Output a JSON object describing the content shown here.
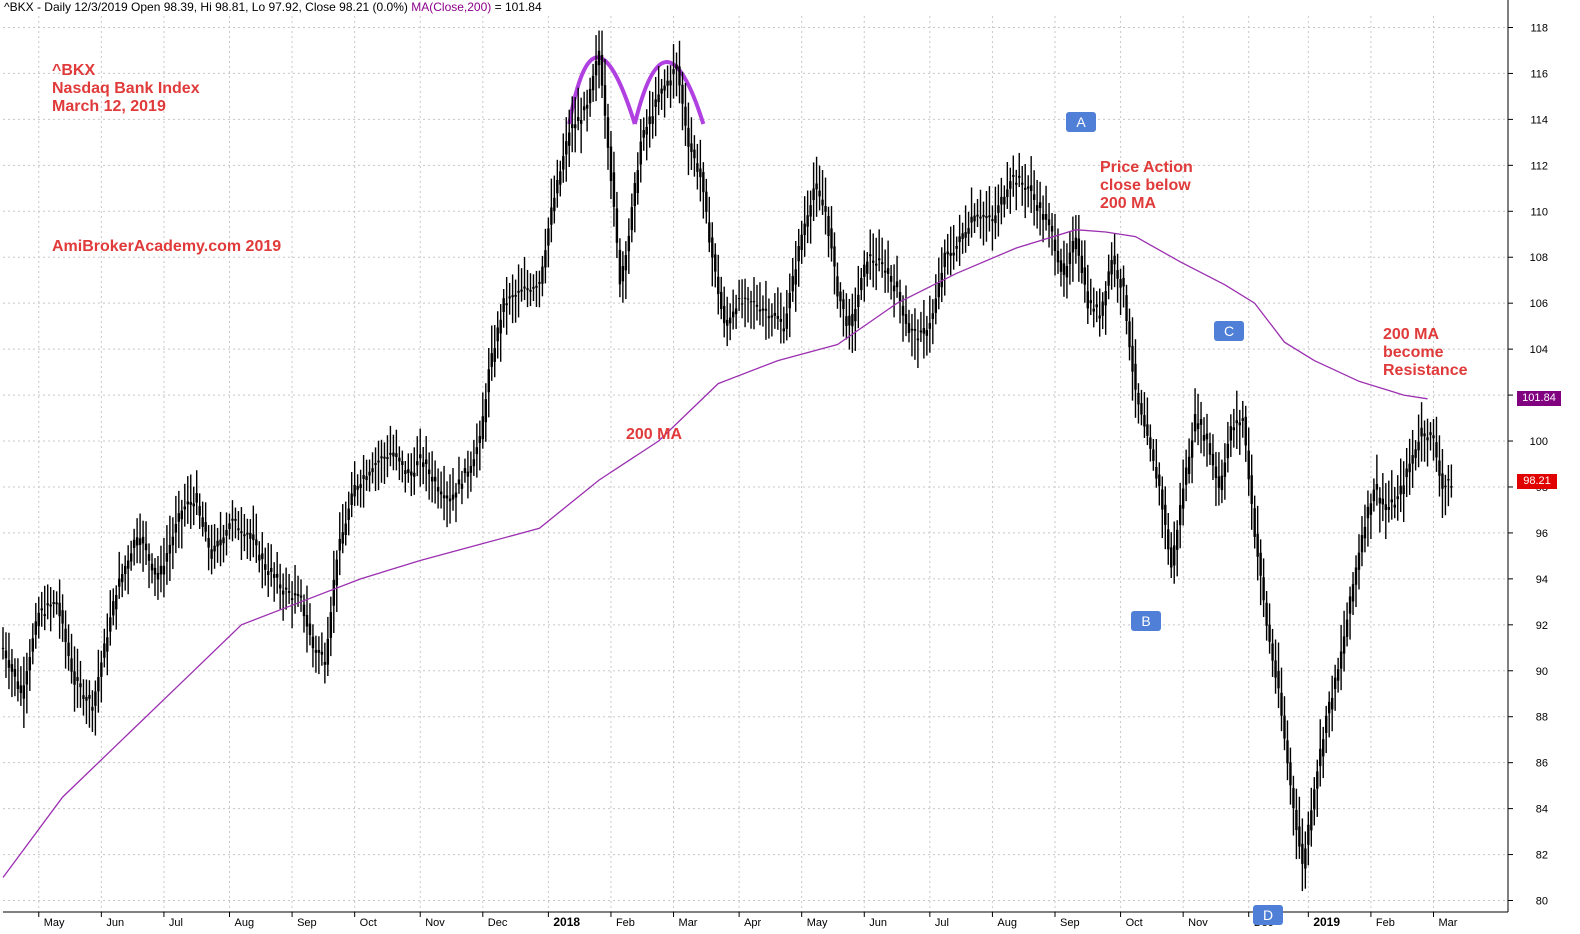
{
  "header": {
    "symbol_text": "^BKX - Daily 12/3/2019 Open 98.39, Hi 98.81, Lo 97.92, Close 98.21 (0.0%)",
    "ma_label": "MA(Close,200)",
    "ma_value_text": " = 101.84"
  },
  "annotations": {
    "title": "^BKX\nNasdaq Bank Index\nMarch 12, 2019",
    "site": "AmiBrokerAcademy.com  2019",
    "ma_label": "200 MA",
    "price_action": "Price Action\nclose below\n200 MA",
    "resistance": "200 MA\nbecome\nResistance"
  },
  "markers": [
    "A",
    "B",
    "C",
    "D"
  ],
  "tags": {
    "ma_tag": "101.84",
    "close_tag": "98.21",
    "ma_color": "#800080",
    "close_color": "#e00000"
  },
  "colors": {
    "price": "#000000",
    "ma": "#9b2fb0",
    "arc": "#b040e0",
    "grid": "#c8c8c8"
  },
  "chart_data": {
    "type": "line",
    "title": "",
    "xlabel": "",
    "ylabel": "",
    "ylim": [
      79.5,
      118.5
    ],
    "y_ticks": [
      80,
      82,
      84,
      86,
      88,
      90,
      92,
      94,
      96,
      98,
      100,
      102,
      104,
      106,
      108,
      110,
      112,
      114,
      116,
      118
    ],
    "x_ticks": [
      "May",
      "Jun",
      "Jul",
      "Aug",
      "Sep",
      "Oct",
      "Nov",
      "Dec",
      "2018",
      "Feb",
      "Mar",
      "Apr",
      "May",
      "Jun",
      "Jul",
      "Aug",
      "Sep",
      "Oct",
      "Nov",
      "Dec",
      "2019",
      "Feb",
      "Mar"
    ],
    "x_tick_index": [
      12,
      33,
      54,
      76,
      97,
      118,
      140,
      161,
      183,
      204,
      225,
      247,
      268,
      289,
      311,
      332,
      353,
      375,
      396,
      418,
      438,
      459,
      480
    ],
    "series": [
      {
        "name": "",
        "style": "price",
        "points": [
          [
            0,
            91
          ],
          [
            6,
            89
          ],
          [
            12,
            92.5
          ],
          [
            18,
            93
          ],
          [
            24,
            89.5
          ],
          [
            30,
            88.5
          ],
          [
            38,
            93.5
          ],
          [
            45,
            96
          ],
          [
            52,
            94
          ],
          [
            60,
            97
          ],
          [
            64,
            97.5
          ],
          [
            70,
            95
          ],
          [
            76,
            96.5
          ],
          [
            82,
            96
          ],
          [
            88,
            94.5
          ],
          [
            94,
            93.5
          ],
          [
            100,
            93
          ],
          [
            104,
            91
          ],
          [
            108,
            90.5
          ],
          [
            112,
            95
          ],
          [
            118,
            98
          ],
          [
            124,
            99
          ],
          [
            130,
            99.5
          ],
          [
            136,
            98.5
          ],
          [
            140,
            99.2
          ],
          [
            146,
            98
          ],
          [
            150,
            97.5
          ],
          [
            156,
            98.8
          ],
          [
            160,
            100
          ],
          [
            163,
            103
          ],
          [
            168,
            106
          ],
          [
            174,
            106.5
          ],
          [
            180,
            107
          ],
          [
            184,
            110
          ],
          [
            190,
            113.5
          ],
          [
            196,
            114.5
          ],
          [
            200,
            117
          ],
          [
            203,
            113
          ],
          [
            207,
            107
          ],
          [
            210,
            109
          ],
          [
            214,
            113
          ],
          [
            220,
            115
          ],
          [
            226,
            116.3
          ],
          [
            230,
            113
          ],
          [
            234,
            111.5
          ],
          [
            238,
            108
          ],
          [
            242,
            105
          ],
          [
            246,
            106
          ],
          [
            252,
            106
          ],
          [
            258,
            105.5
          ],
          [
            262,
            105
          ],
          [
            268,
            109
          ],
          [
            272,
            111
          ],
          [
            276,
            110
          ],
          [
            280,
            106.5
          ],
          [
            284,
            104.8
          ],
          [
            290,
            108
          ],
          [
            296,
            107.5
          ],
          [
            300,
            106.5
          ],
          [
            304,
            104.8
          ],
          [
            308,
            104.5
          ],
          [
            312,
            105.5
          ],
          [
            316,
            108
          ],
          [
            320,
            108.5
          ],
          [
            326,
            110
          ],
          [
            332,
            109.5
          ],
          [
            338,
            111.5
          ],
          [
            344,
            111
          ],
          [
            348,
            110
          ],
          [
            352,
            109
          ],
          [
            356,
            107
          ],
          [
            360,
            109
          ],
          [
            364,
            106
          ],
          [
            368,
            105.5
          ],
          [
            372,
            108
          ],
          [
            376,
            106.5
          ],
          [
            380,
            102
          ],
          [
            384,
            100
          ],
          [
            388,
            98
          ],
          [
            392,
            94.5
          ],
          [
            396,
            98
          ],
          [
            400,
            101
          ],
          [
            404,
            100
          ],
          [
            408,
            98
          ],
          [
            412,
            100.5
          ],
          [
            416,
            101
          ],
          [
            420,
            96
          ],
          [
            424,
            92
          ],
          [
            428,
            89
          ],
          [
            432,
            85
          ],
          [
            436,
            81.5
          ],
          [
            440,
            85
          ],
          [
            444,
            88
          ],
          [
            448,
            90
          ],
          [
            452,
            93
          ],
          [
            456,
            96
          ],
          [
            460,
            98
          ],
          [
            464,
            97
          ],
          [
            468,
            97.5
          ],
          [
            472,
            99
          ],
          [
            476,
            100.5
          ],
          [
            480,
            100
          ],
          [
            483,
            98
          ],
          [
            486,
            98.2
          ]
        ]
      },
      {
        "name": "MA(Close,200)",
        "style": "ma",
        "points": [
          [
            0,
            81
          ],
          [
            20,
            84.5
          ],
          [
            40,
            87
          ],
          [
            60,
            89.5
          ],
          [
            80,
            92
          ],
          [
            100,
            93
          ],
          [
            120,
            94
          ],
          [
            140,
            94.8
          ],
          [
            160,
            95.5
          ],
          [
            180,
            96.2
          ],
          [
            200,
            98.3
          ],
          [
            220,
            100
          ],
          [
            240,
            102.5
          ],
          [
            260,
            103.5
          ],
          [
            280,
            104.2
          ],
          [
            300,
            106
          ],
          [
            320,
            107.3
          ],
          [
            340,
            108.4
          ],
          [
            360,
            109.2
          ],
          [
            370,
            109.1
          ],
          [
            380,
            108.9
          ],
          [
            395,
            107.8
          ],
          [
            410,
            106.8
          ],
          [
            420,
            106
          ],
          [
            430,
            104.3
          ],
          [
            440,
            103.5
          ],
          [
            455,
            102.6
          ],
          [
            470,
            102
          ],
          [
            478,
            101.84
          ]
        ]
      }
    ]
  }
}
